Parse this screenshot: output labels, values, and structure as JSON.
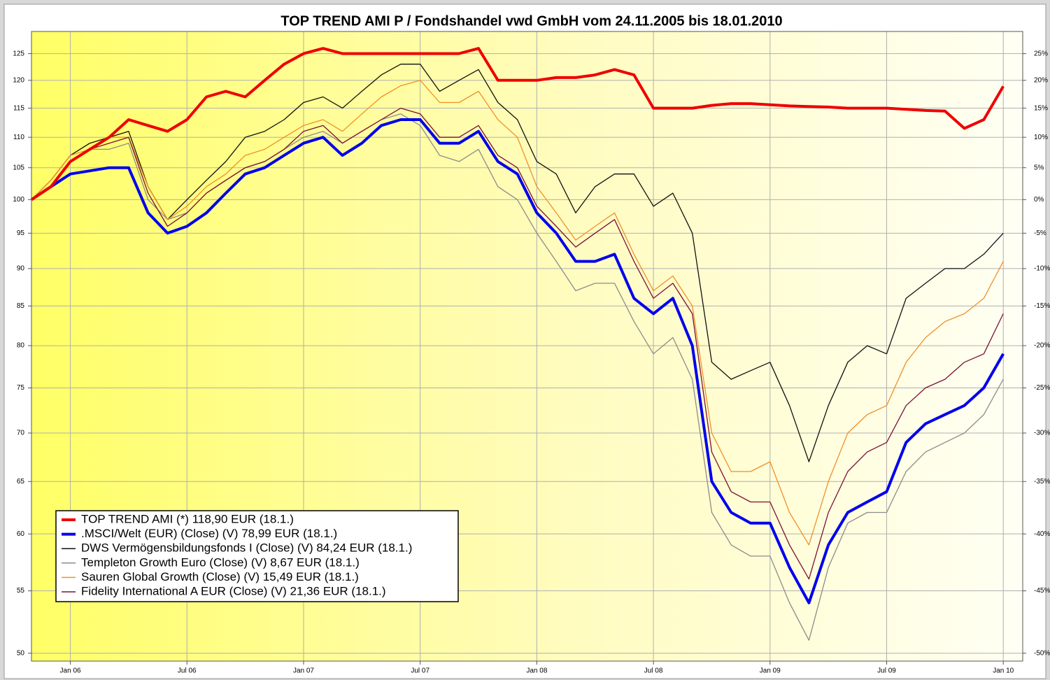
{
  "chart_data": {
    "type": "line",
    "title": "TOP TREND AMI P / Fondshandel vwd GmbH vom 24.11.2005 bis 18.01.2010",
    "ylog": true,
    "grid": true,
    "legend": "lower left",
    "x": [
      "2005-11",
      "2005-12",
      "2006-01",
      "2006-02",
      "2006-03",
      "2006-04",
      "2006-05",
      "2006-06",
      "2006-07",
      "2006-08",
      "2006-09",
      "2006-10",
      "2006-11",
      "2006-12",
      "2007-01",
      "2007-02",
      "2007-03",
      "2007-04",
      "2007-05",
      "2007-06",
      "2007-07",
      "2007-08",
      "2007-09",
      "2007-10",
      "2007-11",
      "2007-12",
      "2008-01",
      "2008-02",
      "2008-03",
      "2008-04",
      "2008-05",
      "2008-06",
      "2008-07",
      "2008-08",
      "2008-09",
      "2008-10",
      "2008-11",
      "2008-12",
      "2009-01",
      "2009-02",
      "2009-03",
      "2009-04",
      "2009-05",
      "2009-06",
      "2009-07",
      "2009-08",
      "2009-09",
      "2009-10",
      "2009-11",
      "2009-12",
      "2010-01"
    ],
    "xlim": [
      "2005-11",
      "2010-02"
    ],
    "xticks": [
      {
        "value": "2006-01",
        "label": "Jan 06"
      },
      {
        "value": "2006-07",
        "label": "Jul 06"
      },
      {
        "value": "2007-01",
        "label": "Jan 07"
      },
      {
        "value": "2007-07",
        "label": "Jul 07"
      },
      {
        "value": "2008-01",
        "label": "Jan 08"
      },
      {
        "value": "2008-07",
        "label": "Jul 08"
      },
      {
        "value": "2009-01",
        "label": "Jan 09"
      },
      {
        "value": "2009-07",
        "label": "Jul 09"
      },
      {
        "value": "2010-01",
        "label": "Jan 10"
      }
    ],
    "ylim": [
      49.4,
      129.3
    ],
    "yticks": [
      50,
      55,
      60,
      65,
      70,
      75,
      80,
      85,
      90,
      95,
      100,
      105,
      110,
      115,
      120,
      125
    ],
    "y2log": true,
    "y2lim": [
      -50.6,
      29.3
    ],
    "y2ticks": [
      {
        "value": -50,
        "label": "-50%"
      },
      {
        "value": -45,
        "label": "-45%"
      },
      {
        "value": -40,
        "label": "-40%"
      },
      {
        "value": -35,
        "label": "-35%"
      },
      {
        "value": -30,
        "label": "-30%"
      },
      {
        "value": -25,
        "label": "-25%"
      },
      {
        "value": -20,
        "label": "-20%"
      },
      {
        "value": -15,
        "label": "-15%"
      },
      {
        "value": -10,
        "label": "-10%"
      },
      {
        "value": -5,
        "label": "-5%"
      },
      {
        "value": 0,
        "label": "0%"
      },
      {
        "value": 5,
        "label": "5%"
      },
      {
        "value": 10,
        "label": "10%"
      },
      {
        "value": 15,
        "label": "15%"
      },
      {
        "value": 20,
        "label": "20%"
      },
      {
        "value": 25,
        "label": "25%"
      }
    ],
    "series": [
      {
        "name": "TOP TREND AMI (*) 118,90 EUR (18.1.)",
        "color": "#ee0000",
        "width": 4,
        "values": [
          100,
          102,
          106,
          108,
          110,
          113,
          112,
          111,
          113,
          117,
          118,
          117,
          120,
          123,
          125,
          126,
          125,
          125,
          125,
          125,
          125,
          125,
          125,
          126,
          120,
          120,
          120,
          120.5,
          120.5,
          121,
          122,
          121,
          115,
          115,
          115,
          115.5,
          115.8,
          115.8,
          115.6,
          115.4,
          115.3,
          115.2,
          115,
          115,
          115,
          114.8,
          114.6,
          114.5,
          111.5,
          113,
          118.9
        ]
      },
      {
        "name": ".MSCI/Welt (EUR) (Close) (V) 78,99 EUR (18.1.)",
        "color": "#0000ee",
        "width": 4,
        "values": [
          100,
          102,
          104,
          104.5,
          105,
          105,
          98,
          95,
          96,
          98,
          101,
          104,
          105,
          107,
          109,
          110,
          107,
          109,
          112,
          113,
          113,
          109,
          109,
          111,
          106,
          104,
          98,
          95,
          91,
          91,
          92,
          86,
          84,
          86,
          80,
          65,
          62,
          61,
          61,
          57,
          54,
          59,
          62,
          63,
          64,
          69,
          71,
          72,
          73,
          75,
          79
        ]
      },
      {
        "name": "DWS Vermögensbildungsfonds I (Close) (V) 84,24 EUR (18.1.)",
        "color": "#111111",
        "width": 1.3,
        "values": [
          100,
          103,
          107,
          109,
          110,
          111,
          102,
          97,
          100,
          103,
          106,
          110,
          111,
          113,
          116,
          117,
          115,
          118,
          121,
          123,
          123,
          118,
          120,
          122,
          116,
          113,
          106,
          104,
          98,
          102,
          104,
          104,
          99,
          101,
          95,
          78,
          76,
          77,
          78,
          73,
          67,
          73,
          78,
          80,
          79,
          86,
          88,
          90,
          90,
          92,
          95
        ]
      },
      {
        "name": "Templeton Growth Euro (Close) (V) 8,67 EUR (18.1.)",
        "color": "#8c8c8c",
        "width": 1.3,
        "values": [
          100,
          102,
          106,
          108,
          108,
          109,
          100,
          97,
          98,
          101,
          103,
          105,
          106,
          108,
          110,
          111,
          109,
          111,
          113,
          114,
          112,
          107,
          106,
          108,
          102,
          100,
          95,
          91,
          87,
          88,
          88,
          83,
          79,
          81,
          76,
          62,
          59,
          58,
          58,
          54,
          51,
          57,
          61,
          62,
          62,
          66,
          68,
          69,
          70,
          72,
          76
        ]
      },
      {
        "name": "Sauren Global Growth (Close) (V) 15,49 EUR (18.1.)",
        "color": "#f0902a",
        "width": 1.3,
        "values": [
          100,
          103,
          107,
          108,
          110,
          110,
          102,
          97,
          99,
          102,
          104,
          107,
          108,
          110,
          112,
          113,
          111,
          114,
          117,
          119,
          120,
          116,
          116,
          118,
          113,
          110,
          102,
          98,
          94,
          96,
          98,
          92,
          87,
          89,
          85,
          70,
          66,
          66,
          67,
          62,
          59,
          65,
          70,
          72,
          73,
          78,
          81,
          83,
          84,
          86,
          91
        ]
      },
      {
        "name": "Fidelity International A EUR (Close) (V) 21,36 EUR (18.1.)",
        "color": "#7a1035",
        "width": 1.3,
        "values": [
          100,
          102,
          106,
          108,
          109,
          110,
          101,
          96,
          98,
          101,
          103,
          105,
          106,
          108,
          111,
          112,
          109,
          111,
          113,
          115,
          114,
          110,
          110,
          112,
          107,
          105,
          99,
          96,
          93,
          95,
          97,
          91,
          86,
          88,
          84,
          68,
          64,
          63,
          63,
          59,
          56,
          62,
          66,
          68,
          69,
          73,
          75,
          76,
          78,
          79,
          84
        ]
      }
    ]
  }
}
